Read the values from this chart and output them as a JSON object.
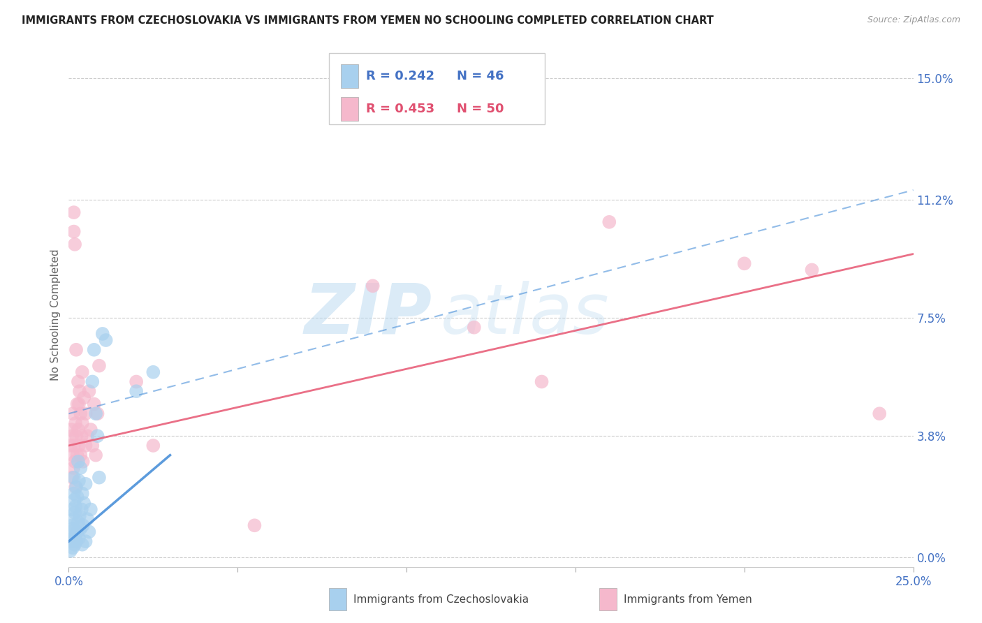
{
  "title": "IMMIGRANTS FROM CZECHOSLOVAKIA VS IMMIGRANTS FROM YEMEN NO SCHOOLING COMPLETED CORRELATION CHART",
  "source": "Source: ZipAtlas.com",
  "ylabel": "No Schooling Completed",
  "ytick_labels": [
    "0.0%",
    "3.8%",
    "7.5%",
    "11.2%",
    "15.0%"
  ],
  "ytick_values": [
    0.0,
    3.8,
    7.5,
    11.2,
    15.0
  ],
  "xlim": [
    0.0,
    25.0
  ],
  "ylim": [
    -0.3,
    15.5
  ],
  "legend_r1": "R = 0.242",
  "legend_n1": "N = 46",
  "legend_r2": "R = 0.453",
  "legend_n2": "N = 50",
  "color_czech": "#a8d0ee",
  "color_czech_line": "#4a90d9",
  "color_yemen": "#f5b8cc",
  "color_yemen_line": "#e8607a",
  "color_blue_text": "#4472c4",
  "color_pink_text": "#e05070",
  "watermark_zip": "ZIP",
  "watermark_atlas": "atlas",
  "scatter_czech": [
    [
      0.05,
      0.2
    ],
    [
      0.07,
      0.5
    ],
    [
      0.08,
      0.8
    ],
    [
      0.1,
      1.0
    ],
    [
      0.1,
      1.5
    ],
    [
      0.12,
      0.3
    ],
    [
      0.12,
      0.9
    ],
    [
      0.14,
      0.6
    ],
    [
      0.15,
      1.2
    ],
    [
      0.15,
      2.0
    ],
    [
      0.15,
      2.5
    ],
    [
      0.17,
      1.8
    ],
    [
      0.18,
      0.4
    ],
    [
      0.18,
      1.4
    ],
    [
      0.2,
      0.7
    ],
    [
      0.2,
      1.6
    ],
    [
      0.22,
      0.5
    ],
    [
      0.22,
      2.2
    ],
    [
      0.25,
      0.8
    ],
    [
      0.25,
      1.9
    ],
    [
      0.28,
      1.1
    ],
    [
      0.28,
      3.0
    ],
    [
      0.3,
      0.6
    ],
    [
      0.3,
      2.4
    ],
    [
      0.32,
      1.3
    ],
    [
      0.35,
      0.9
    ],
    [
      0.35,
      2.8
    ],
    [
      0.38,
      1.5
    ],
    [
      0.4,
      0.4
    ],
    [
      0.4,
      2.0
    ],
    [
      0.42,
      1.0
    ],
    [
      0.45,
      1.7
    ],
    [
      0.5,
      0.5
    ],
    [
      0.5,
      2.3
    ],
    [
      0.55,
      1.2
    ],
    [
      0.6,
      0.8
    ],
    [
      0.65,
      1.5
    ],
    [
      0.7,
      5.5
    ],
    [
      0.75,
      6.5
    ],
    [
      0.8,
      4.5
    ],
    [
      0.85,
      3.8
    ],
    [
      0.9,
      2.5
    ],
    [
      1.0,
      7.0
    ],
    [
      1.1,
      6.8
    ],
    [
      2.0,
      5.2
    ],
    [
      2.5,
      5.8
    ]
  ],
  "scatter_yemen": [
    [
      0.05,
      3.5
    ],
    [
      0.08,
      4.0
    ],
    [
      0.1,
      2.5
    ],
    [
      0.1,
      3.8
    ],
    [
      0.12,
      3.2
    ],
    [
      0.12,
      4.5
    ],
    [
      0.14,
      2.8
    ],
    [
      0.15,
      3.5
    ],
    [
      0.15,
      10.2
    ],
    [
      0.15,
      10.8
    ],
    [
      0.18,
      9.8
    ],
    [
      0.18,
      3.0
    ],
    [
      0.2,
      4.2
    ],
    [
      0.2,
      2.2
    ],
    [
      0.22,
      6.5
    ],
    [
      0.22,
      3.8
    ],
    [
      0.25,
      4.8
    ],
    [
      0.25,
      3.2
    ],
    [
      0.28,
      5.5
    ],
    [
      0.28,
      4.0
    ],
    [
      0.3,
      3.5
    ],
    [
      0.3,
      4.8
    ],
    [
      0.32,
      5.2
    ],
    [
      0.35,
      3.2
    ],
    [
      0.35,
      4.5
    ],
    [
      0.38,
      3.8
    ],
    [
      0.4,
      5.8
    ],
    [
      0.4,
      4.2
    ],
    [
      0.42,
      3.0
    ],
    [
      0.45,
      5.0
    ],
    [
      0.5,
      4.5
    ],
    [
      0.5,
      3.5
    ],
    [
      0.55,
      3.8
    ],
    [
      0.6,
      5.2
    ],
    [
      0.65,
      4.0
    ],
    [
      0.7,
      3.5
    ],
    [
      0.75,
      4.8
    ],
    [
      0.8,
      3.2
    ],
    [
      0.85,
      4.5
    ],
    [
      0.9,
      6.0
    ],
    [
      2.0,
      5.5
    ],
    [
      2.5,
      3.5
    ],
    [
      5.5,
      1.0
    ],
    [
      9.0,
      8.5
    ],
    [
      12.0,
      7.2
    ],
    [
      14.0,
      5.5
    ],
    [
      16.0,
      10.5
    ],
    [
      20.0,
      9.2
    ],
    [
      22.0,
      9.0
    ],
    [
      24.0,
      4.5
    ]
  ],
  "czech_line_x": [
    0.0,
    3.0
  ],
  "czech_line_y": [
    0.5,
    3.2
  ],
  "yemen_line_x": [
    0.0,
    25.0
  ],
  "yemen_line_y": [
    3.5,
    9.5
  ]
}
